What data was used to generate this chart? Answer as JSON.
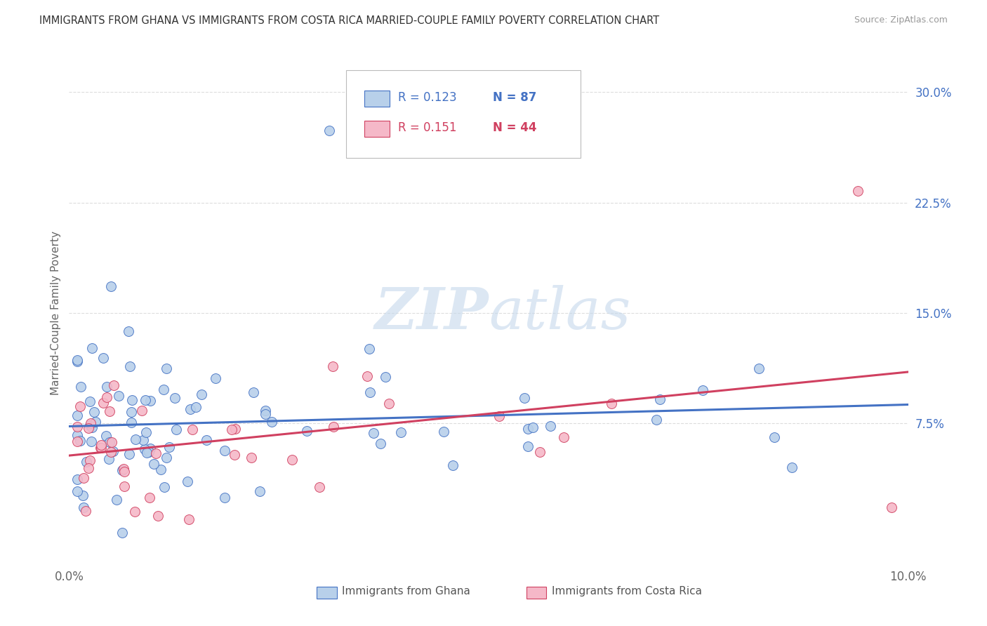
{
  "title": "IMMIGRANTS FROM GHANA VS IMMIGRANTS FROM COSTA RICA MARRIED-COUPLE FAMILY POVERTY CORRELATION CHART",
  "source": "Source: ZipAtlas.com",
  "ylabel": "Married-Couple Family Poverty",
  "y_ticks": [
    "7.5%",
    "15.0%",
    "22.5%",
    "30.0%"
  ],
  "y_tick_vals": [
    0.075,
    0.15,
    0.225,
    0.3
  ],
  "x_lim": [
    0.0,
    0.1
  ],
  "y_lim": [
    -0.02,
    0.32
  ],
  "watermark": "ZIPatlas",
  "legend_r1": "R = 0.123",
  "legend_n1": "N = 87",
  "legend_r2": "R = 0.151",
  "legend_n2": "N = 44",
  "color_ghana": "#b8d0ea",
  "color_costarica": "#f5b8c8",
  "color_line_ghana": "#4472c4",
  "color_line_costarica": "#d04060",
  "background_color": "#ffffff",
  "grid_color": "#dddddd"
}
